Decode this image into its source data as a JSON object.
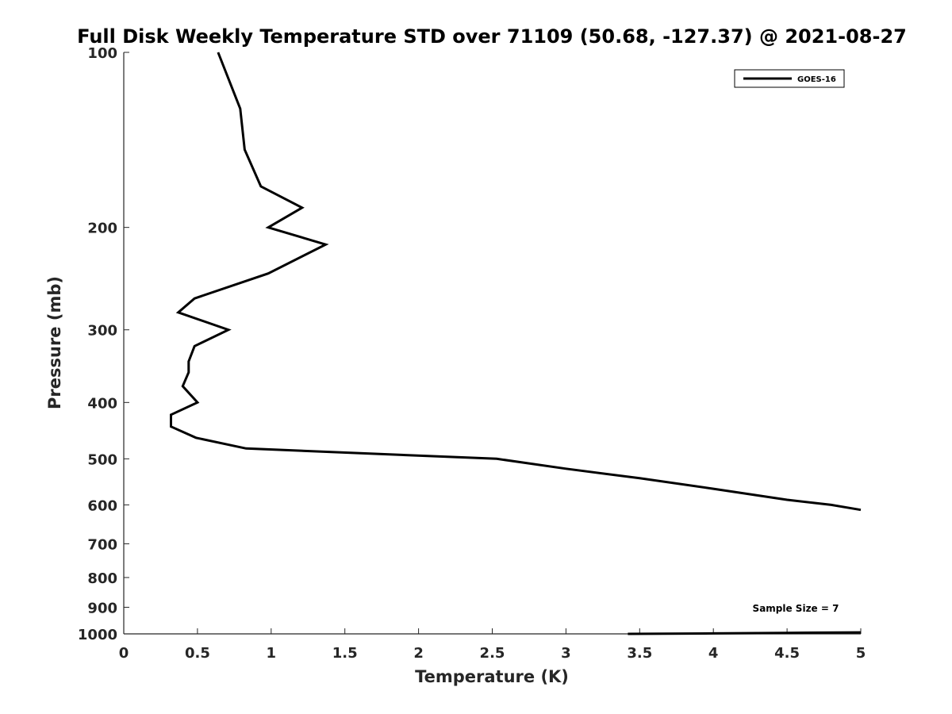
{
  "chart_data": {
    "type": "line",
    "title": "Full Disk Weekly Temperature STD over 71109 (50.68, -127.37) @ 2021-08-27",
    "xlabel": "Temperature (K)",
    "ylabel": "Pressure (mb)",
    "xlim": [
      0,
      5
    ],
    "ylim": [
      100,
      1000
    ],
    "y_scale": "log",
    "y_reversed": true,
    "grid": false,
    "legend_position": "top-right",
    "x_ticks": [
      "0",
      "0.5",
      "1",
      "1.5",
      "2",
      "2.5",
      "3",
      "3.5",
      "4",
      "4.5",
      "5"
    ],
    "x_tick_values": [
      0,
      0.5,
      1,
      1.5,
      2,
      2.5,
      3,
      3.5,
      4,
      4.5,
      5
    ],
    "y_ticks": [
      "100",
      "200",
      "300",
      "400",
      "500",
      "600",
      "700",
      "800",
      "900",
      "1000"
    ],
    "y_tick_values": [
      100,
      200,
      300,
      400,
      500,
      600,
      700,
      800,
      900,
      1000
    ],
    "series": [
      {
        "name": "GOES-16",
        "color": "#000000",
        "segments": [
          [
            [
              0.64,
              100
            ],
            [
              0.79,
              125
            ],
            [
              0.82,
              147
            ],
            [
              0.93,
              170
            ],
            [
              1.21,
              185
            ],
            [
              0.98,
              200
            ],
            [
              1.37,
              214
            ],
            [
              0.98,
              240
            ],
            [
              0.48,
              265
            ],
            [
              0.37,
              280
            ],
            [
              0.71,
              300
            ],
            [
              0.48,
              320
            ],
            [
              0.44,
              340
            ],
            [
              0.44,
              355
            ],
            [
              0.4,
              375
            ],
            [
              0.5,
              400
            ],
            [
              0.32,
              420
            ],
            [
              0.32,
              440
            ],
            [
              0.49,
              460
            ],
            [
              0.83,
              480
            ],
            [
              2.53,
              500
            ],
            [
              3.0,
              520
            ],
            [
              3.5,
              540
            ],
            [
              4.0,
              563
            ],
            [
              4.5,
              588
            ],
            [
              4.8,
              600
            ],
            [
              5.0,
              612
            ]
          ],
          [
            [
              3.42,
              1000
            ],
            [
              4.0,
              998
            ],
            [
              4.5,
              996
            ],
            [
              5.0,
              994
            ]
          ]
        ]
      }
    ],
    "annotations": [
      "Sample Size = 7"
    ]
  }
}
